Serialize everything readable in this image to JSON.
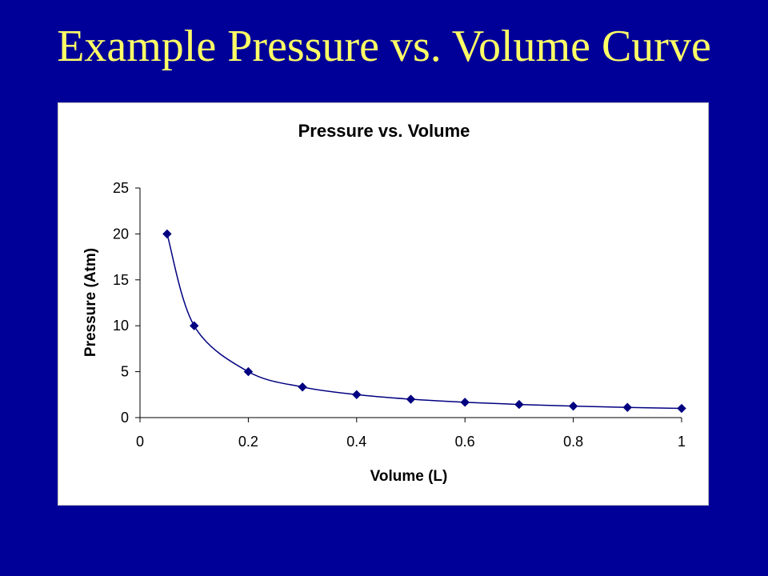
{
  "slide": {
    "title": "Example Pressure vs. Volume Curve"
  },
  "colors": {
    "background": "#000099",
    "title": "#ffff66",
    "series": "#000080"
  },
  "chart_data": {
    "type": "scatter",
    "title": "Pressure vs. Volume",
    "xlabel": "Volume (L)",
    "ylabel": "Pressure (Atm)",
    "xlim": [
      0,
      1
    ],
    "ylim": [
      0,
      25
    ],
    "xticks": [
      0,
      0.2,
      0.4,
      0.6,
      0.8,
      1
    ],
    "yticks": [
      0,
      5,
      10,
      15,
      20,
      25
    ],
    "grid": false,
    "legend": "none",
    "smoothed_line": true,
    "marker": "diamond",
    "series": [
      {
        "x": [
          0.05,
          0.1,
          0.2,
          0.3,
          0.4,
          0.5,
          0.6,
          0.7,
          0.8,
          0.9,
          1.0
        ],
        "y": [
          20,
          10,
          5,
          3.33,
          2.5,
          2,
          1.67,
          1.43,
          1.25,
          1.11,
          1.0
        ]
      }
    ]
  }
}
